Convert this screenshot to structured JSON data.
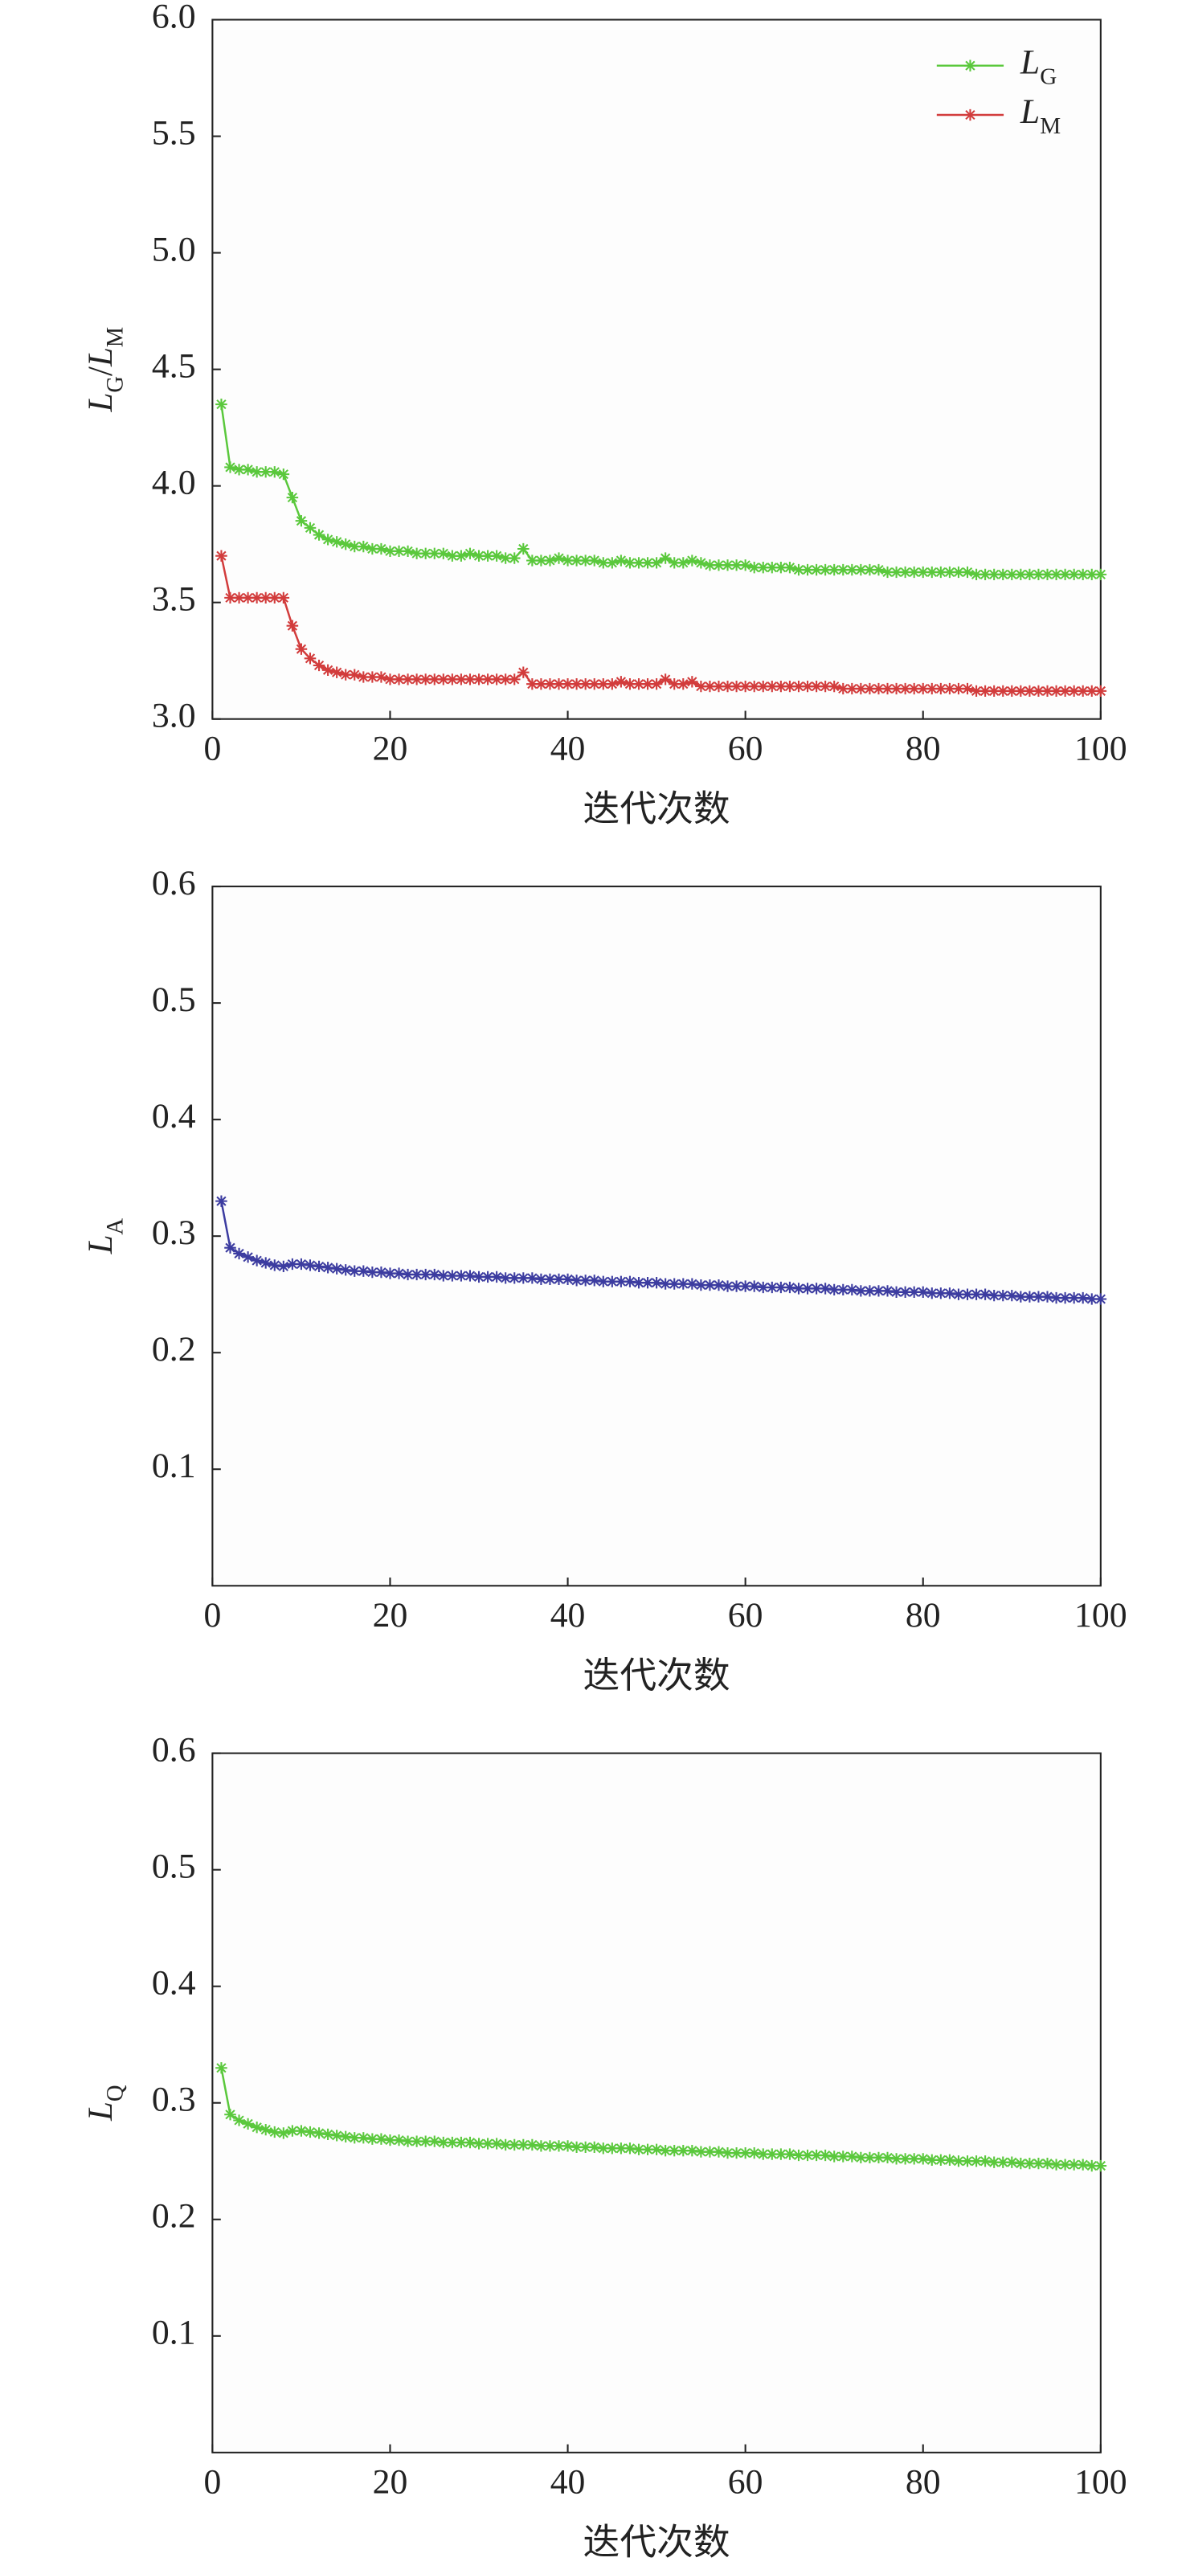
{
  "chart_data": [
    {
      "type": "line",
      "xlabel": "迭代次数",
      "ylabel": "LG/LM",
      "x": [
        1,
        2,
        3,
        4,
        5,
        6,
        7,
        8,
        9,
        10,
        11,
        12,
        13,
        14,
        15,
        16,
        17,
        18,
        19,
        20,
        21,
        22,
        23,
        24,
        25,
        26,
        27,
        28,
        29,
        30,
        31,
        32,
        33,
        34,
        35,
        36,
        37,
        38,
        39,
        40,
        41,
        42,
        43,
        44,
        45,
        46,
        47,
        48,
        49,
        50,
        51,
        52,
        53,
        54,
        55,
        56,
        57,
        58,
        59,
        60,
        61,
        62,
        63,
        64,
        65,
        66,
        67,
        68,
        69,
        70,
        71,
        72,
        73,
        74,
        75,
        76,
        77,
        78,
        79,
        80,
        81,
        82,
        83,
        84,
        85,
        86,
        87,
        88,
        89,
        90,
        91,
        92,
        93,
        94,
        95,
        96,
        97,
        98,
        99,
        100
      ],
      "series": [
        {
          "name": "LG",
          "color": "#5ac83c",
          "values": [
            4.35,
            4.08,
            4.07,
            4.07,
            4.06,
            4.06,
            4.06,
            4.05,
            3.95,
            3.85,
            3.82,
            3.79,
            3.77,
            3.76,
            3.75,
            3.74,
            3.74,
            3.73,
            3.73,
            3.72,
            3.72,
            3.72,
            3.71,
            3.71,
            3.71,
            3.71,
            3.7,
            3.7,
            3.71,
            3.7,
            3.7,
            3.7,
            3.69,
            3.69,
            3.73,
            3.68,
            3.68,
            3.68,
            3.69,
            3.68,
            3.68,
            3.68,
            3.68,
            3.67,
            3.67,
            3.68,
            3.67,
            3.67,
            3.67,
            3.67,
            3.69,
            3.67,
            3.67,
            3.68,
            3.67,
            3.66,
            3.66,
            3.66,
            3.66,
            3.66,
            3.65,
            3.65,
            3.65,
            3.65,
            3.65,
            3.64,
            3.64,
            3.64,
            3.64,
            3.64,
            3.64,
            3.64,
            3.64,
            3.64,
            3.64,
            3.63,
            3.63,
            3.63,
            3.63,
            3.63,
            3.63,
            3.63,
            3.63,
            3.63,
            3.63,
            3.62,
            3.62,
            3.62,
            3.62,
            3.62,
            3.62,
            3.62,
            3.62,
            3.62,
            3.62,
            3.62,
            3.62,
            3.62,
            3.62,
            3.62
          ]
        },
        {
          "name": "LM",
          "color": "#d23c3c",
          "values": [
            3.7,
            3.52,
            3.52,
            3.52,
            3.52,
            3.52,
            3.52,
            3.52,
            3.4,
            3.3,
            3.26,
            3.23,
            3.21,
            3.2,
            3.19,
            3.19,
            3.18,
            3.18,
            3.18,
            3.17,
            3.17,
            3.17,
            3.17,
            3.17,
            3.17,
            3.17,
            3.17,
            3.17,
            3.17,
            3.17,
            3.17,
            3.17,
            3.17,
            3.17,
            3.2,
            3.15,
            3.15,
            3.15,
            3.15,
            3.15,
            3.15,
            3.15,
            3.15,
            3.15,
            3.15,
            3.16,
            3.15,
            3.15,
            3.15,
            3.15,
            3.17,
            3.15,
            3.15,
            3.16,
            3.14,
            3.14,
            3.14,
            3.14,
            3.14,
            3.14,
            3.14,
            3.14,
            3.14,
            3.14,
            3.14,
            3.14,
            3.14,
            3.14,
            3.14,
            3.14,
            3.13,
            3.13,
            3.13,
            3.13,
            3.13,
            3.13,
            3.13,
            3.13,
            3.13,
            3.13,
            3.13,
            3.13,
            3.13,
            3.13,
            3.13,
            3.12,
            3.12,
            3.12,
            3.12,
            3.12,
            3.12,
            3.12,
            3.12,
            3.12,
            3.12,
            3.12,
            3.12,
            3.12,
            3.12,
            3.12
          ]
        }
      ],
      "legend": "upper right",
      "xlim": [
        0,
        100
      ],
      "xticks": [
        0,
        20,
        40,
        60,
        80,
        100
      ],
      "ylim": [
        3.0,
        6.0
      ],
      "yticks": [
        {
          "value": 3.0,
          "label": "3.0"
        },
        3.5,
        {
          "value": 4.0,
          "label": "4.0"
        },
        4.5,
        {
          "value": 5.0,
          "label": "5.0"
        },
        5.5,
        {
          "value": 6.0,
          "label": "6.0"
        }
      ]
    },
    {
      "type": "line",
      "xlabel": "迭代次数",
      "ylabel": "LA",
      "color": "#3c3ca0",
      "x": [
        1,
        2,
        3,
        4,
        5,
        6,
        7,
        8,
        9,
        10,
        11,
        12,
        13,
        14,
        15,
        16,
        17,
        18,
        19,
        20,
        21,
        22,
        23,
        24,
        25,
        26,
        27,
        28,
        29,
        30,
        31,
        32,
        33,
        34,
        35,
        36,
        37,
        38,
        39,
        40,
        41,
        42,
        43,
        44,
        45,
        46,
        47,
        48,
        49,
        50,
        51,
        52,
        53,
        54,
        55,
        56,
        57,
        58,
        59,
        60,
        61,
        62,
        63,
        64,
        65,
        66,
        67,
        68,
        69,
        70,
        71,
        72,
        73,
        74,
        75,
        76,
        77,
        78,
        79,
        80,
        81,
        82,
        83,
        84,
        85,
        86,
        87,
        88,
        89,
        90,
        91,
        92,
        93,
        94,
        95,
        96,
        97,
        98,
        99,
        100
      ],
      "values": [
        0.33,
        0.29,
        0.285,
        0.282,
        0.279,
        0.277,
        0.275,
        0.274,
        0.276,
        0.276,
        0.275,
        0.274,
        0.273,
        0.272,
        0.271,
        0.27,
        0.27,
        0.269,
        0.269,
        0.268,
        0.268,
        0.267,
        0.267,
        0.267,
        0.267,
        0.266,
        0.266,
        0.266,
        0.266,
        0.265,
        0.265,
        0.265,
        0.264,
        0.264,
        0.264,
        0.264,
        0.263,
        0.263,
        0.263,
        0.263,
        0.262,
        0.262,
        0.262,
        0.261,
        0.261,
        0.261,
        0.261,
        0.26,
        0.26,
        0.26,
        0.259,
        0.259,
        0.259,
        0.259,
        0.258,
        0.258,
        0.258,
        0.257,
        0.257,
        0.257,
        0.257,
        0.256,
        0.256,
        0.256,
        0.256,
        0.255,
        0.255,
        0.255,
        0.255,
        0.254,
        0.254,
        0.254,
        0.253,
        0.253,
        0.253,
        0.253,
        0.252,
        0.252,
        0.252,
        0.252,
        0.251,
        0.251,
        0.251,
        0.25,
        0.25,
        0.25,
        0.25,
        0.249,
        0.249,
        0.249,
        0.248,
        0.248,
        0.248,
        0.248,
        0.247,
        0.247,
        0.247,
        0.247,
        0.246,
        0.246
      ],
      "xlim": [
        0,
        100
      ],
      "xticks": [
        0,
        20,
        40,
        60,
        80,
        100
      ],
      "ylim": [
        0,
        0.6
      ],
      "yticks": [
        0.1,
        0.2,
        0.3,
        0.4,
        0.5,
        0.6
      ]
    },
    {
      "type": "line",
      "xlabel": "迭代次数",
      "ylabel": "LQ",
      "color": "#5ac83c",
      "x": [
        1,
        2,
        3,
        4,
        5,
        6,
        7,
        8,
        9,
        10,
        11,
        12,
        13,
        14,
        15,
        16,
        17,
        18,
        19,
        20,
        21,
        22,
        23,
        24,
        25,
        26,
        27,
        28,
        29,
        30,
        31,
        32,
        33,
        34,
        35,
        36,
        37,
        38,
        39,
        40,
        41,
        42,
        43,
        44,
        45,
        46,
        47,
        48,
        49,
        50,
        51,
        52,
        53,
        54,
        55,
        56,
        57,
        58,
        59,
        60,
        61,
        62,
        63,
        64,
        65,
        66,
        67,
        68,
        69,
        70,
        71,
        72,
        73,
        74,
        75,
        76,
        77,
        78,
        79,
        80,
        81,
        82,
        83,
        84,
        85,
        86,
        87,
        88,
        89,
        90,
        91,
        92,
        93,
        94,
        95,
        96,
        97,
        98,
        99,
        100
      ],
      "values": [
        0.33,
        0.29,
        0.285,
        0.282,
        0.279,
        0.277,
        0.275,
        0.274,
        0.276,
        0.276,
        0.275,
        0.274,
        0.273,
        0.272,
        0.271,
        0.27,
        0.27,
        0.269,
        0.269,
        0.268,
        0.268,
        0.267,
        0.267,
        0.267,
        0.267,
        0.266,
        0.266,
        0.266,
        0.266,
        0.265,
        0.265,
        0.265,
        0.264,
        0.264,
        0.264,
        0.264,
        0.263,
        0.263,
        0.263,
        0.263,
        0.262,
        0.262,
        0.262,
        0.261,
        0.261,
        0.261,
        0.261,
        0.26,
        0.26,
        0.26,
        0.259,
        0.259,
        0.259,
        0.259,
        0.258,
        0.258,
        0.258,
        0.257,
        0.257,
        0.257,
        0.257,
        0.256,
        0.256,
        0.256,
        0.256,
        0.255,
        0.255,
        0.255,
        0.255,
        0.254,
        0.254,
        0.254,
        0.253,
        0.253,
        0.253,
        0.253,
        0.252,
        0.252,
        0.252,
        0.252,
        0.251,
        0.251,
        0.251,
        0.25,
        0.25,
        0.25,
        0.25,
        0.249,
        0.249,
        0.249,
        0.248,
        0.248,
        0.248,
        0.248,
        0.247,
        0.247,
        0.247,
        0.247,
        0.246,
        0.246
      ],
      "xlim": [
        0,
        100
      ],
      "xticks": [
        0,
        20,
        40,
        60,
        80,
        100
      ],
      "ylim": [
        0,
        0.6
      ],
      "yticks": [
        0.1,
        0.2,
        0.3,
        0.4,
        0.5,
        0.6
      ]
    }
  ]
}
